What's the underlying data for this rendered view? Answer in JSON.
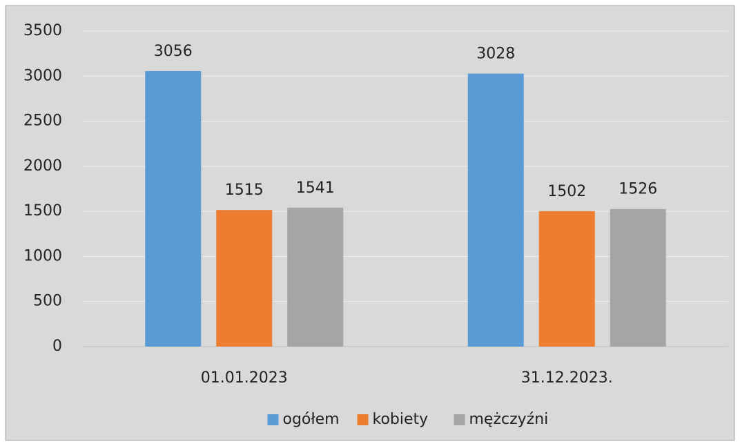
{
  "chart_data": {
    "type": "bar",
    "categories": [
      "01.01.2023",
      "31.12.2023."
    ],
    "series": [
      {
        "name": "ogółem",
        "color": "#5b9bd5",
        "values": [
          3056,
          3028
        ]
      },
      {
        "name": "kobiety",
        "color": "#ed7d31",
        "values": [
          1515,
          1502
        ]
      },
      {
        "name": "mężczyźni",
        "color": "#a5a5a5",
        "values": [
          1541,
          1526
        ]
      }
    ],
    "ylim": [
      0,
      3500
    ],
    "yticks": [
      0,
      500,
      1000,
      1500,
      2000,
      2500,
      3000,
      3500
    ],
    "grid": true,
    "legend": "bottom"
  }
}
